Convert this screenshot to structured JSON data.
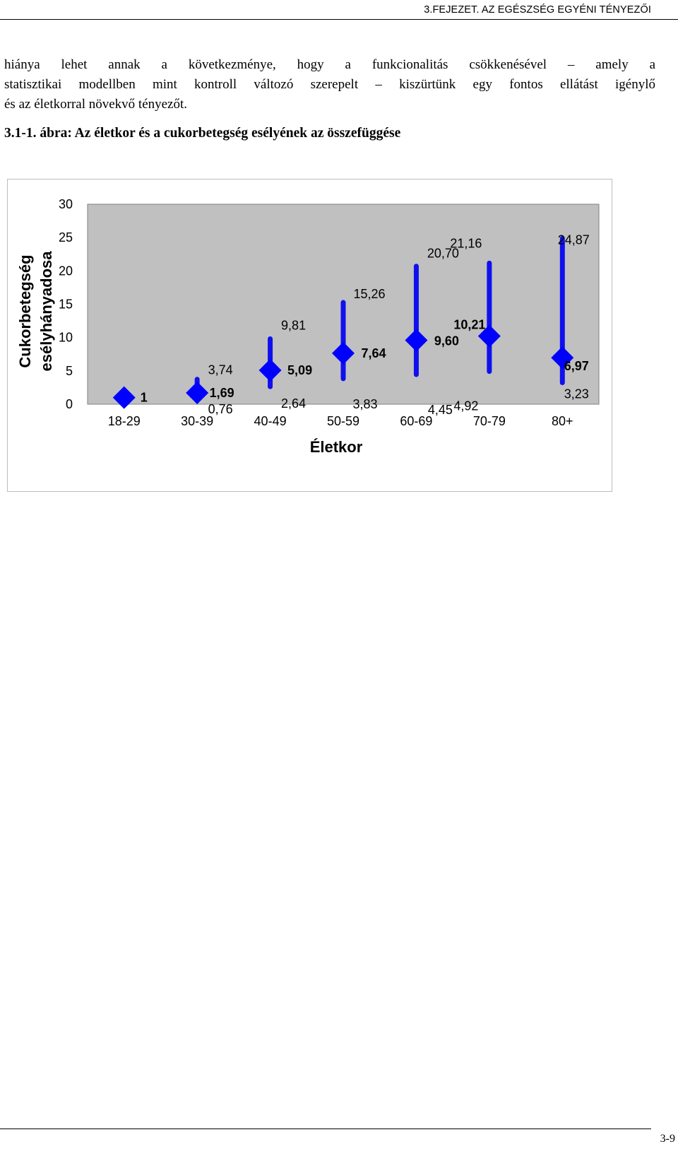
{
  "header": {
    "chapter": "3.FEJEZET.  AZ EGÉSZSÉG EGYÉNI TÉNYEZŐI"
  },
  "body": {
    "lines": [
      "hiánya lehet annak a következménye, hogy a funkcionalitás csökkenésével – amely a",
      "statisztikai modellben mint kontroll változó szerepelt – kiszürtünk egy fontos ellátást igénylő",
      "és az életkorral növekvő tényezőt."
    ]
  },
  "figure": {
    "caption": "3.1-1. ábra: Az életkor és a cukorbetegség esélyének az összefüggése"
  },
  "chart_data": {
    "type": "scatter",
    "xlabel": "Életkor",
    "ylabel_lines": [
      "Cukorbetegség",
      "esélyhányadosa"
    ],
    "categories": [
      "18-29",
      "30-39",
      "40-49",
      "50-59",
      "60-69",
      "70-79",
      "80+"
    ],
    "ylim": [
      0,
      30
    ],
    "yticks": [
      0,
      5,
      10,
      15,
      20,
      25,
      30
    ],
    "ytick_labels": [
      "0",
      "5",
      "10",
      "15",
      "20",
      "25",
      "30"
    ],
    "grid": false,
    "plot_background": "#c0c0c0",
    "series": [
      {
        "point_labels": [
          "1",
          "1,69",
          "5,09",
          "7,64",
          "9,60",
          "10,21",
          "6,97"
        ],
        "values": [
          1,
          1.69,
          5.09,
          7.64,
          9.6,
          10.21,
          6.97
        ],
        "lower": [
          null,
          0.76,
          2.64,
          3.83,
          4.45,
          4.92,
          3.23
        ],
        "lower_labels": [
          "",
          "0,76",
          "2,64",
          "3,83",
          "4,45",
          "4,92",
          "3,23"
        ],
        "upper": [
          null,
          3.74,
          9.81,
          15.26,
          20.7,
          21.16,
          24.87
        ],
        "upper_labels": [
          "",
          "3,74",
          "9,81",
          "15,26",
          "20,70",
          "21,16",
          "24,87"
        ]
      }
    ],
    "colors": {
      "marker": "#0000ff",
      "range": "#1010ee"
    }
  },
  "footer": {
    "page_number": "3-9"
  }
}
